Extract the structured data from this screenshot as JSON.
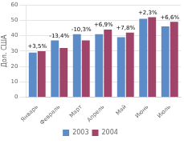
{
  "chart_data": {
    "type": "bar",
    "categories": [
      "Январь",
      "Февраль",
      "Март",
      "Апрель",
      "Май",
      "Июнь",
      "Июль"
    ],
    "series": [
      {
        "name": "2003",
        "color": "#5B8CC8",
        "values": [
          29,
          37,
          41,
          41,
          39,
          51,
          46
        ]
      },
      {
        "name": "2004",
        "color": "#A0446A",
        "values": [
          30,
          32,
          37,
          44,
          42,
          52,
          49
        ]
      }
    ],
    "annotations": [
      "+3,5%",
      "-13,4%",
      "-10,3%",
      "+6,9%",
      "+7,8%",
      "+2,3%",
      "+6,6%"
    ],
    "y_label": "Дол. США",
    "ylim": [
      0,
      60
    ],
    "yticks": [
      0,
      10,
      20,
      30,
      40,
      50,
      60
    ],
    "grid": true,
    "legend": "bottom"
  }
}
